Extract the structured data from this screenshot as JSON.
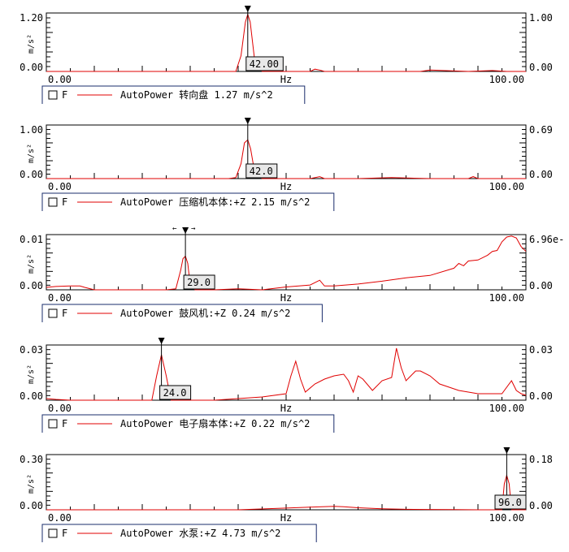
{
  "x_axis": {
    "min_label": "0.00",
    "max_label": "100.00",
    "unit_label": "Hz"
  },
  "legend_common": {
    "checkbox_label": "F",
    "type_label": "AutoPower"
  },
  "colors": {
    "trace": "#e00000",
    "frame": "#000000",
    "legend_border": "#1a2c6b",
    "tag_fill": "#e8e8e8"
  },
  "chart_data": [
    {
      "type": "line",
      "ylabel": "m/s²",
      "left_axis_labels": [
        "1.20",
        "0.00"
      ],
      "right_axis_labels": [
        "1.00",
        "0.00"
      ],
      "ylim": [
        0,
        1.3
      ],
      "xlim": [
        0,
        100
      ],
      "cursor": {
        "x": 42.0,
        "label": "42.00",
        "double_arrow": false
      },
      "legend": "AutoPower 转向盘 1.27 m/s^2",
      "series": [
        {
          "x": [
            0,
            38,
            39.5,
            40.6,
            41.5,
            42,
            42.5,
            43.5,
            45,
            48,
            52,
            55,
            56,
            57,
            58,
            60,
            65,
            70,
            78,
            80,
            88,
            93,
            96,
            100
          ],
          "y": [
            0,
            0,
            0,
            0.35,
            1.1,
            1.27,
            1.1,
            0.2,
            0,
            0,
            0,
            0,
            0.05,
            0.03,
            0,
            0,
            0,
            0,
            0,
            0.03,
            0,
            0.02,
            0,
            0
          ]
        }
      ]
    },
    {
      "type": "line",
      "ylabel": "m/s²",
      "left_axis_labels": [
        "1.00",
        "0.00"
      ],
      "right_axis_labels": [
        "0.69",
        "0.00"
      ],
      "ylim": [
        0,
        1.08
      ],
      "xlim": [
        0,
        100
      ],
      "cursor": {
        "x": 42.0,
        "label": "42.0",
        "double_arrow": false
      },
      "legend": "AutoPower 压缩机本体:+Z 2.15 m/s^2",
      "series": [
        {
          "x": [
            0,
            38,
            39.5,
            40.6,
            41.3,
            42,
            42.6,
            43.5,
            45,
            50,
            55,
            57,
            58,
            60,
            65,
            72,
            80,
            88,
            89,
            90,
            95,
            100
          ],
          "y": [
            0,
            0,
            0.02,
            0.3,
            0.72,
            0.78,
            0.6,
            0.1,
            0,
            0,
            0,
            0.04,
            0,
            0,
            0,
            0.02,
            0,
            0,
            0.04,
            0,
            0,
            0
          ]
        }
      ]
    },
    {
      "type": "line",
      "ylabel": "m/s²",
      "left_axis_labels": [
        "0.01",
        "0.00"
      ],
      "right_axis_labels": [
        "6.96e-",
        "0.00"
      ],
      "ylim": [
        0,
        0.0115
      ],
      "xlim": [
        0,
        100
      ],
      "cursor": {
        "x": 29.0,
        "label": "29.0",
        "double_arrow": true
      },
      "legend": "AutoPower 鼓风机:+Z 0.24 m/s^2",
      "series": [
        {
          "x": [
            0,
            2,
            5,
            7,
            8,
            10,
            15,
            20,
            25,
            27,
            28,
            28.5,
            29,
            29.5,
            30,
            31,
            35,
            40,
            45,
            50,
            55,
            57,
            58,
            60,
            65,
            70,
            75,
            80,
            85,
            86,
            87,
            88,
            90,
            92,
            93,
            94,
            95,
            96,
            97,
            98,
            99,
            100
          ],
          "y": [
            0.0005,
            0.0007,
            0.0008,
            0.0008,
            0.0005,
            0,
            0,
            0,
            0,
            0.0002,
            0.004,
            0.0065,
            0.007,
            0.0055,
            0.001,
            0,
            0,
            0.0002,
            0,
            0.0006,
            0.001,
            0.002,
            0.0008,
            0.0008,
            0.0012,
            0.0018,
            0.0025,
            0.003,
            0.0045,
            0.0055,
            0.005,
            0.006,
            0.0062,
            0.0072,
            0.008,
            0.0082,
            0.01,
            0.011,
            0.0112,
            0.0108,
            0.009,
            0.008
          ]
        }
      ]
    },
    {
      "type": "line",
      "ylabel": "m/s²",
      "left_axis_labels": [
        "0.03",
        "0.00"
      ],
      "right_axis_labels": [
        "0.03",
        "0.00"
      ],
      "ylim": [
        0,
        0.034
      ],
      "xlim": [
        0,
        100
      ],
      "cursor": {
        "x": 24.0,
        "label": "24.0",
        "double_arrow": false
      },
      "legend": "AutoPower 电子扇本体:+Z 0.22 m/s^2",
      "series": [
        {
          "x": [
            0,
            2,
            5,
            10,
            15,
            20,
            22,
            23,
            24,
            25,
            26,
            27,
            30,
            35,
            40,
            45,
            50,
            51,
            52,
            53,
            54,
            56,
            58,
            60,
            62,
            63,
            64,
            65,
            66,
            68,
            70,
            72,
            73,
            74,
            75,
            76,
            77,
            78,
            80,
            82,
            84,
            86,
            90,
            95,
            97,
            98,
            99,
            100
          ],
          "y": [
            0.001,
            0.0005,
            0,
            0,
            0,
            0,
            0,
            0.015,
            0.028,
            0.015,
            0,
            0,
            0,
            0,
            0.001,
            0.002,
            0.004,
            0.015,
            0.024,
            0.013,
            0.005,
            0.01,
            0.013,
            0.015,
            0.016,
            0.012,
            0.005,
            0.015,
            0.013,
            0.006,
            0.012,
            0.014,
            0.032,
            0.02,
            0.012,
            0.015,
            0.018,
            0.018,
            0.015,
            0.01,
            0.008,
            0.006,
            0.004,
            0.004,
            0.012,
            0.006,
            0.004,
            0.003
          ]
        }
      ]
    },
    {
      "type": "line",
      "ylabel": "m/s²",
      "left_axis_labels": [
        "0.30",
        "0.00"
      ],
      "right_axis_labels": [
        "0.18",
        "0.00"
      ],
      "ylim": [
        0,
        0.32
      ],
      "xlim": [
        0,
        100
      ],
      "cursor": {
        "x": 96.0,
        "label": "96.0",
        "double_arrow": false
      },
      "legend": "AutoPower 水泵:+Z 4.73 m/s^2",
      "series": [
        {
          "x": [
            0,
            10,
            20,
            40,
            50,
            55,
            60,
            62,
            65,
            70,
            75,
            80,
            85,
            90,
            95,
            95.5,
            96,
            96.5,
            97,
            98,
            100
          ],
          "y": [
            0,
            0,
            0,
            0,
            0.01,
            0.015,
            0.02,
            0.018,
            0.012,
            0.006,
            0.003,
            0.002,
            0.001,
            0,
            0,
            0.15,
            0.2,
            0.15,
            0,
            0,
            0
          ]
        }
      ]
    }
  ]
}
